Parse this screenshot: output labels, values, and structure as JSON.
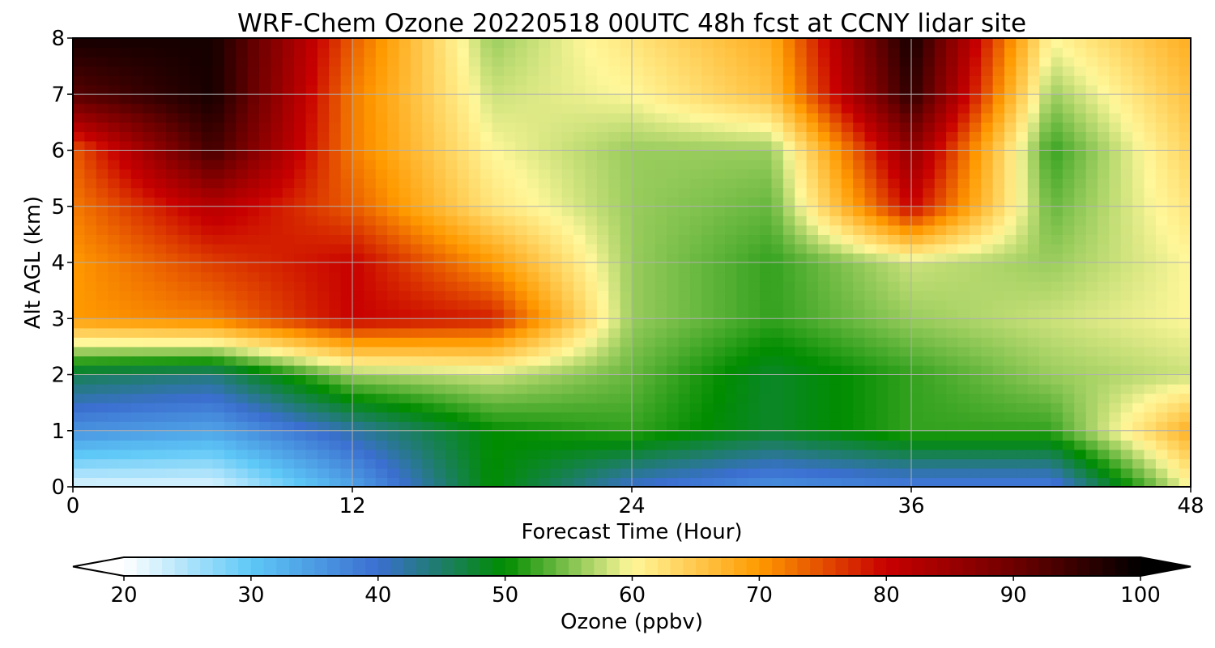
{
  "chart_data": {
    "type": "heatmap",
    "title": "WRF-Chem Ozone  20220518 00UTC 48h fcst at CCNY lidar site",
    "xlabel": "Forecast Time (Hour)",
    "ylabel": "Alt AGL (km)",
    "xlim": [
      0,
      48
    ],
    "ylim": [
      0,
      8
    ],
    "xticks": [
      0,
      12,
      24,
      36,
      48
    ],
    "yticks": [
      0,
      1,
      2,
      3,
      4,
      5,
      6,
      7,
      8
    ],
    "grid": true,
    "x": [
      0,
      6,
      12,
      18,
      24,
      30,
      36,
      42,
      48
    ],
    "y": [
      0,
      1,
      2,
      3,
      4,
      5,
      6,
      7,
      8
    ],
    "z": [
      [
        22,
        22,
        34,
        50,
        40,
        36,
        38,
        38,
        60
      ],
      [
        36,
        34,
        42,
        50,
        52,
        48,
        52,
        52,
        68
      ],
      [
        46,
        44,
        56,
        58,
        54,
        48,
        52,
        56,
        58
      ],
      [
        70,
        72,
        80,
        78,
        56,
        52,
        56,
        58,
        60
      ],
      [
        70,
        76,
        80,
        70,
        56,
        52,
        58,
        56,
        60
      ],
      [
        72,
        82,
        74,
        62,
        56,
        54,
        80,
        54,
        62
      ],
      [
        74,
        94,
        72,
        60,
        56,
        56,
        86,
        52,
        64
      ],
      [
        92,
        98,
        72,
        58,
        60,
        66,
        96,
        56,
        66
      ],
      [
        98,
        98,
        74,
        56,
        62,
        68,
        98,
        60,
        68
      ]
    ],
    "colorbar": {
      "label": "Ozone  (ppbv)",
      "min": 20,
      "max": 100,
      "ticks": [
        20,
        30,
        40,
        50,
        60,
        70,
        80,
        90,
        100
      ],
      "extend": "both",
      "stops": [
        {
          "v": 20,
          "c": "#ffffff"
        },
        {
          "v": 30,
          "c": "#5ec8f7"
        },
        {
          "v": 40,
          "c": "#3b6fd0"
        },
        {
          "v": 50,
          "c": "#008c00"
        },
        {
          "v": 60,
          "c": "#fff79a"
        },
        {
          "v": 70,
          "c": "#ff9a00"
        },
        {
          "v": 80,
          "c": "#c80000"
        },
        {
          "v": 90,
          "c": "#6e0000"
        },
        {
          "v": 100,
          "c": "#000000"
        }
      ]
    }
  }
}
